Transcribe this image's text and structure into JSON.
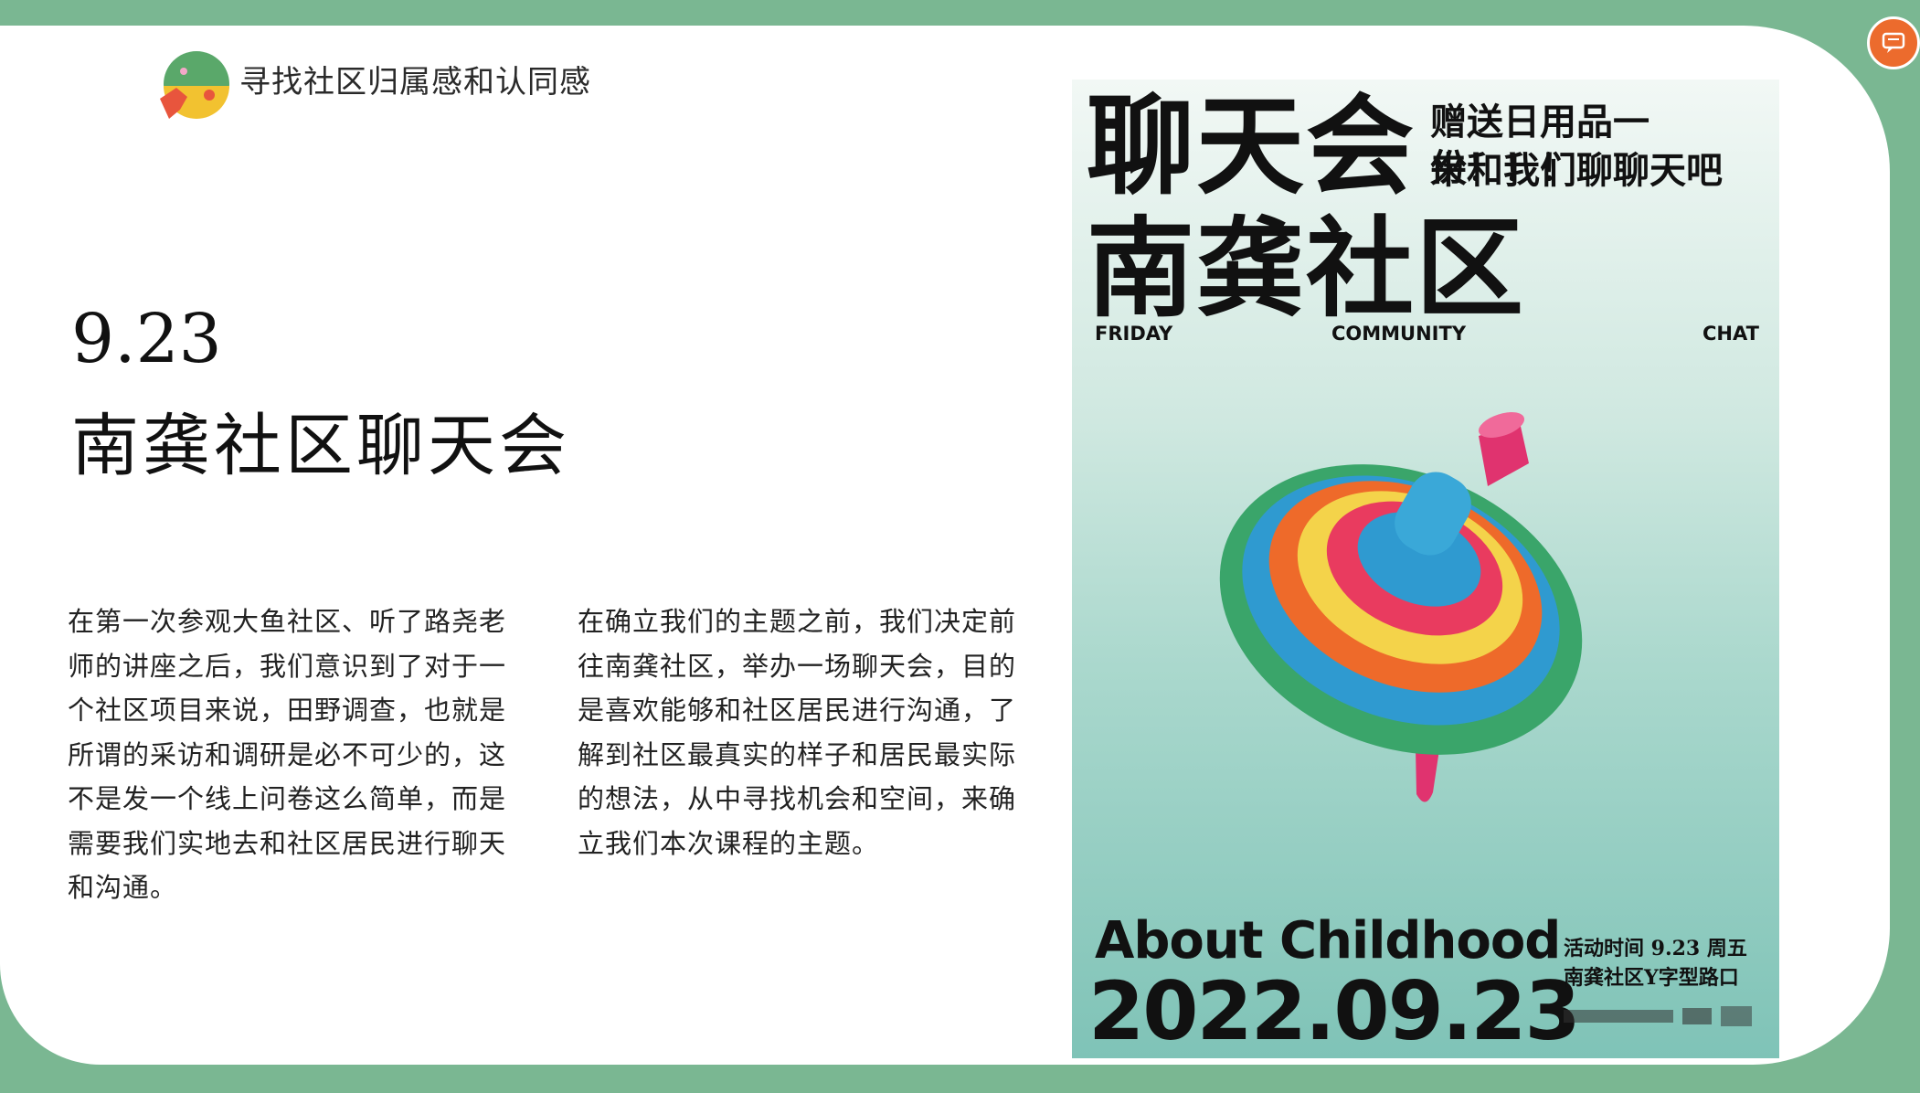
{
  "header": {
    "subtitle": "寻找社区归属感和认同感",
    "logo_icon": "community-logo-icon"
  },
  "corner_button": {
    "icon": "speech-bubble-icon",
    "color": "#ec6b2d"
  },
  "event": {
    "date": "9.23",
    "title": "南龚社区聊天会"
  },
  "paragraphs": [
    "在第一次参观大鱼社区、听了路尧老师的讲座之后，我们意识到了对于一个社区项目来说，田野调查，也就是所谓的采访和调研是必不可少的，这不是发一个线上问卷这么简单，而是需要我们实地去和社区居民进行聊天和沟通。",
    "在确立我们的主题之前，我们决定前往南龚社区，举办一场聊天会，目的是喜欢能够和社区居民进行沟通，了解到社区最真实的样子和居民最实际的想法，从中寻找机会和空间，来确立我们本次课程的主题。"
  ],
  "poster": {
    "headline_1": "聊天会",
    "headline_2": "南龚社区",
    "tagline_1": "赠送日用品一份！！！",
    "tagline_2": "来和我们聊聊天吧",
    "en_words": [
      "FRIDAY",
      "COMMUNITY",
      "CHAT"
    ],
    "about": "About Childhood",
    "full_date": "2022.09.23",
    "info_1": "活动时间  9.23 周五",
    "info_2": "南龚社区Y字型路口",
    "image_icon": "spinning-top-toy-icon",
    "sponsor_icon": "sponsor-logos-icon"
  },
  "colors": {
    "background": "#7ab792",
    "accent": "#ec6b2d"
  }
}
